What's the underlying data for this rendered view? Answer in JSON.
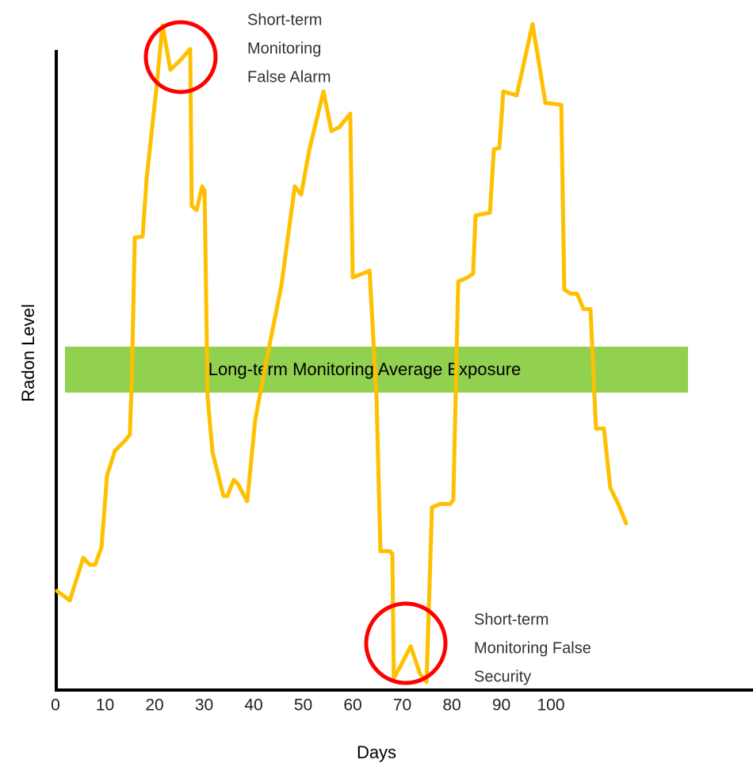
{
  "chart_data": {
    "type": "line",
    "xlabel": "Days",
    "ylabel": "Radon Level",
    "band_label": "Long-term Monitoring Average Exposure",
    "annotations": [
      [
        "Short-term",
        "Monitoring",
        "False Alarm"
      ],
      [
        "Short-term",
        "Monitoring False",
        "Security"
      ]
    ],
    "xlim": [
      0,
      140
    ],
    "xticks": [
      0,
      10,
      20,
      30,
      40,
      50,
      60,
      70,
      80,
      90,
      100
    ],
    "ylim": [
      0,
      100
    ],
    "series": [
      {
        "name": "Radon",
        "color": "#ffc000",
        "x": [
          0.3,
          2.9,
          5.6,
          6.9,
          8.0,
          9.3,
          10.4,
          12.0,
          13.9,
          15.0,
          15.4,
          16.0,
          17.6,
          18.4,
          20.3,
          21.6,
          23.2,
          25.3,
          27.2,
          27.5,
          28.5,
          29.6,
          30.1,
          30.7,
          31.7,
          33.9,
          34.7,
          36.0,
          36.8,
          38.7,
          40.3,
          42.4,
          45.6,
          48.3,
          49.6,
          51.2,
          54.1,
          55.7,
          57.3,
          59.5,
          60.0,
          62.1,
          63.4,
          64.8,
          65.6,
          67.5,
          68.0,
          68.3,
          69.6,
          71.7,
          73.6,
          74.9,
          76.0,
          77.6,
          79.7,
          80.3,
          81.3,
          83.2,
          84.3,
          84.8,
          87.7,
          88.5,
          89.6,
          90.4,
          93.1,
          96.3,
          98.9,
          102.1,
          102.7,
          104.0,
          105.3,
          106.6,
          108.0,
          109.1,
          110.7,
          112.0,
          113.6,
          115.2
        ],
        "values": [
          14.7,
          13.3,
          19.6,
          18.6,
          18.6,
          21.2,
          31.8,
          35.5,
          36.9,
          37.9,
          45.9,
          67.1,
          67.3,
          75.9,
          88.8,
          98.6,
          92.0,
          93.5,
          95.1,
          71.8,
          71.2,
          74.7,
          74.1,
          43.5,
          35.3,
          28.8,
          28.8,
          31.2,
          30.6,
          28.0,
          40.0,
          48.2,
          60.0,
          74.7,
          73.5,
          80.0,
          88.8,
          82.9,
          83.5,
          85.5,
          61.2,
          61.8,
          62.2,
          43.5,
          20.6,
          20.6,
          20.2,
          1.8,
          3.5,
          6.5,
          2.4,
          1.2,
          27.1,
          27.6,
          27.6,
          28.2,
          60.6,
          61.2,
          61.8,
          70.4,
          70.8,
          80.2,
          80.4,
          88.8,
          88.2,
          98.8,
          87.1,
          86.8,
          59.4,
          58.8,
          58.8,
          56.5,
          56.5,
          38.8,
          38.8,
          30.0,
          27.6,
          24.7
        ]
      }
    ]
  }
}
